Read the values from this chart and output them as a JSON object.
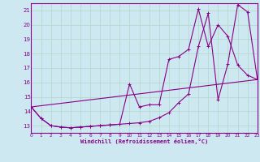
{
  "xlabel": "Windchill (Refroidissement éolien,°C)",
  "xlim": [
    0,
    23
  ],
  "ylim": [
    12.5,
    21.5
  ],
  "xticks": [
    0,
    1,
    2,
    3,
    4,
    5,
    6,
    7,
    8,
    9,
    10,
    11,
    12,
    13,
    14,
    15,
    16,
    17,
    18,
    19,
    20,
    21,
    22,
    23
  ],
  "yticks": [
    13,
    14,
    15,
    16,
    17,
    18,
    19,
    20,
    21
  ],
  "bg_color": "#cde8f0",
  "grid_color": "#b0d8c8",
  "line_color": "#880088",
  "line1_x": [
    0,
    1,
    2,
    3,
    4,
    5,
    6,
    7,
    8,
    9,
    10,
    11,
    12,
    13,
    14,
    15,
    16,
    17,
    18,
    19,
    20,
    21,
    22,
    23
  ],
  "line1_y": [
    14.3,
    13.5,
    13.0,
    12.9,
    12.85,
    12.9,
    12.95,
    13.0,
    13.05,
    13.1,
    15.9,
    14.3,
    14.45,
    14.45,
    17.6,
    17.8,
    18.3,
    21.1,
    18.5,
    20.0,
    19.2,
    17.2,
    16.5,
    16.2
  ],
  "line2_x": [
    0,
    1,
    2,
    3,
    4,
    5,
    6,
    7,
    8,
    9,
    10,
    11,
    12,
    13,
    14,
    15,
    16,
    17,
    18,
    19,
    20,
    21,
    22,
    23
  ],
  "line2_y": [
    14.3,
    13.5,
    13.0,
    12.9,
    12.85,
    12.9,
    12.95,
    13.0,
    13.05,
    13.1,
    13.15,
    13.2,
    13.3,
    13.55,
    13.9,
    14.6,
    15.2,
    18.5,
    20.8,
    14.8,
    17.3,
    21.4,
    20.9,
    16.2
  ],
  "line3_x": [
    0,
    23
  ],
  "line3_y": [
    14.3,
    16.2
  ]
}
